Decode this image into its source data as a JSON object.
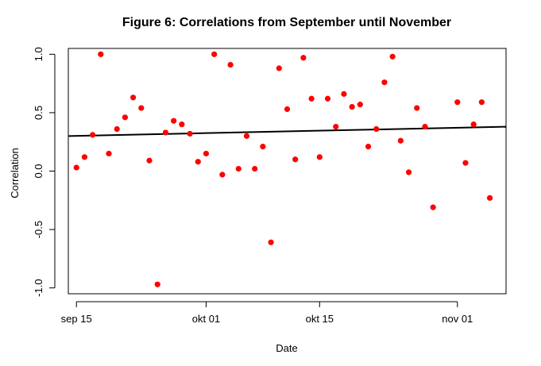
{
  "chart_data": {
    "type": "scatter",
    "title": "Figure 6: Correlations from September until November",
    "xlabel": "Date",
    "ylabel": "Correlation",
    "xlim": [
      "2014-09-14",
      "2014-11-07"
    ],
    "ylim": [
      -1.05,
      1.05
    ],
    "x_ticks": [
      {
        "date": "2014-09-15",
        "label": "sep 15"
      },
      {
        "date": "2014-10-01",
        "label": "okt 01"
      },
      {
        "date": "2014-10-15",
        "label": "okt 15"
      },
      {
        "date": "2014-11-01",
        "label": "nov 01"
      }
    ],
    "y_ticks": [
      {
        "value": -1.0,
        "label": "-1.0"
      },
      {
        "value": -0.5,
        "label": "-0.5"
      },
      {
        "value": 0.0,
        "label": "0.0"
      },
      {
        "value": 0.5,
        "label": "0.5"
      },
      {
        "value": 1.0,
        "label": "1.0"
      }
    ],
    "point_color": "#ff0000",
    "line_color": "#000000",
    "grid": false,
    "series": [
      {
        "points": [
          {
            "x": "2014-09-15",
            "y": 0.03
          },
          {
            "x": "2014-09-16",
            "y": 0.12
          },
          {
            "x": "2014-09-17",
            "y": 0.31
          },
          {
            "x": "2014-09-18",
            "y": 1.0
          },
          {
            "x": "2014-09-19",
            "y": 0.15
          },
          {
            "x": "2014-09-20",
            "y": 0.36
          },
          {
            "x": "2014-09-21",
            "y": 0.46
          },
          {
            "x": "2014-09-22",
            "y": 0.63
          },
          {
            "x": "2014-09-23",
            "y": 0.54
          },
          {
            "x": "2014-09-24",
            "y": 0.09
          },
          {
            "x": "2014-09-25",
            "y": -0.97
          },
          {
            "x": "2014-09-26",
            "y": 0.33
          },
          {
            "x": "2014-09-27",
            "y": 0.43
          },
          {
            "x": "2014-09-28",
            "y": 0.4
          },
          {
            "x": "2014-09-29",
            "y": 0.32
          },
          {
            "x": "2014-09-30",
            "y": 0.08
          },
          {
            "x": "2014-10-01",
            "y": 0.15
          },
          {
            "x": "2014-10-02",
            "y": 1.0
          },
          {
            "x": "2014-10-03",
            "y": -0.03
          },
          {
            "x": "2014-10-04",
            "y": 0.91
          },
          {
            "x": "2014-10-05",
            "y": 0.02
          },
          {
            "x": "2014-10-06",
            "y": 0.3
          },
          {
            "x": "2014-10-07",
            "y": 0.02
          },
          {
            "x": "2014-10-08",
            "y": 0.21
          },
          {
            "x": "2014-10-09",
            "y": -0.61
          },
          {
            "x": "2014-10-10",
            "y": 0.88
          },
          {
            "x": "2014-10-11",
            "y": 0.53
          },
          {
            "x": "2014-10-12",
            "y": 0.1
          },
          {
            "x": "2014-10-13",
            "y": 0.97
          },
          {
            "x": "2014-10-14",
            "y": 0.62
          },
          {
            "x": "2014-10-15",
            "y": 0.12
          },
          {
            "x": "2014-10-16",
            "y": 0.62
          },
          {
            "x": "2014-10-17",
            "y": 0.38
          },
          {
            "x": "2014-10-18",
            "y": 0.66
          },
          {
            "x": "2014-10-19",
            "y": 0.55
          },
          {
            "x": "2014-10-20",
            "y": 0.57
          },
          {
            "x": "2014-10-21",
            "y": 0.21
          },
          {
            "x": "2014-10-22",
            "y": 0.36
          },
          {
            "x": "2014-10-23",
            "y": 0.76
          },
          {
            "x": "2014-10-24",
            "y": 0.98
          },
          {
            "x": "2014-10-25",
            "y": 0.26
          },
          {
            "x": "2014-10-26",
            "y": -0.01
          },
          {
            "x": "2014-10-27",
            "y": 0.54
          },
          {
            "x": "2014-10-28",
            "y": 0.38
          },
          {
            "x": "2014-10-29",
            "y": -0.31
          },
          {
            "x": "2014-11-01",
            "y": 0.59
          },
          {
            "x": "2014-11-02",
            "y": 0.07
          },
          {
            "x": "2014-11-03",
            "y": 0.4
          },
          {
            "x": "2014-11-04",
            "y": 0.59
          },
          {
            "x": "2014-11-05",
            "y": -0.23
          }
        ]
      }
    ],
    "trend_line": {
      "type": "linear",
      "start": {
        "x": "2014-09-14",
        "y": 0.3
      },
      "end": {
        "x": "2014-11-07",
        "y": 0.38
      }
    }
  }
}
